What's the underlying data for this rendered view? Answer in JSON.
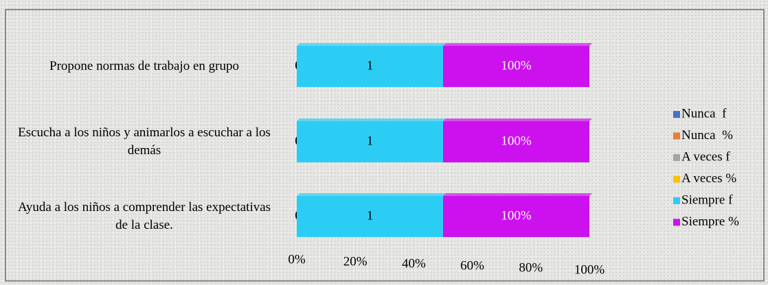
{
  "chart_data": {
    "type": "bar",
    "orientation": "horizontal",
    "stacking": "percent",
    "categories": [
      "Propone normas de trabajo en grupo",
      "Escucha a los niños y animarlos a escuchar a los demás",
      "Ayuda a los niños a comprender las expectativas de la clase."
    ],
    "series": [
      {
        "name": "Nunca  f",
        "color": "#4472c4",
        "values": [
          0,
          0,
          0
        ]
      },
      {
        "name": "Nunca  %",
        "color": "#ed7d31",
        "values": [
          0,
          0,
          0
        ],
        "value_labels": [
          "0%",
          "0%",
          "0%"
        ]
      },
      {
        "name": "A veces f",
        "color": "#a5a5a5",
        "values": [
          0,
          0,
          0
        ]
      },
      {
        "name": "A veces %",
        "color": "#ffc000",
        "values": [
          0,
          0,
          0
        ],
        "value_labels": [
          "0%",
          "0%",
          "0%"
        ]
      },
      {
        "name": "Siempre f",
        "color": "#2bcdf5",
        "values": [
          1,
          1,
          1
        ]
      },
      {
        "name": "Siempre %",
        "color": "#cc11ee",
        "values": [
          1,
          1,
          1
        ],
        "value_labels": [
          "100%",
          "100%",
          "100%"
        ]
      }
    ],
    "xlim": [
      0,
      100
    ],
    "xticks": [
      {
        "value": 0,
        "label": "0%"
      },
      {
        "value": 20,
        "label": "20%"
      },
      {
        "value": 40,
        "label": "40%"
      },
      {
        "value": 60,
        "label": "60%"
      },
      {
        "value": 80,
        "label": "80%"
      },
      {
        "value": 100,
        "label": "100%"
      }
    ],
    "legend": "right"
  }
}
